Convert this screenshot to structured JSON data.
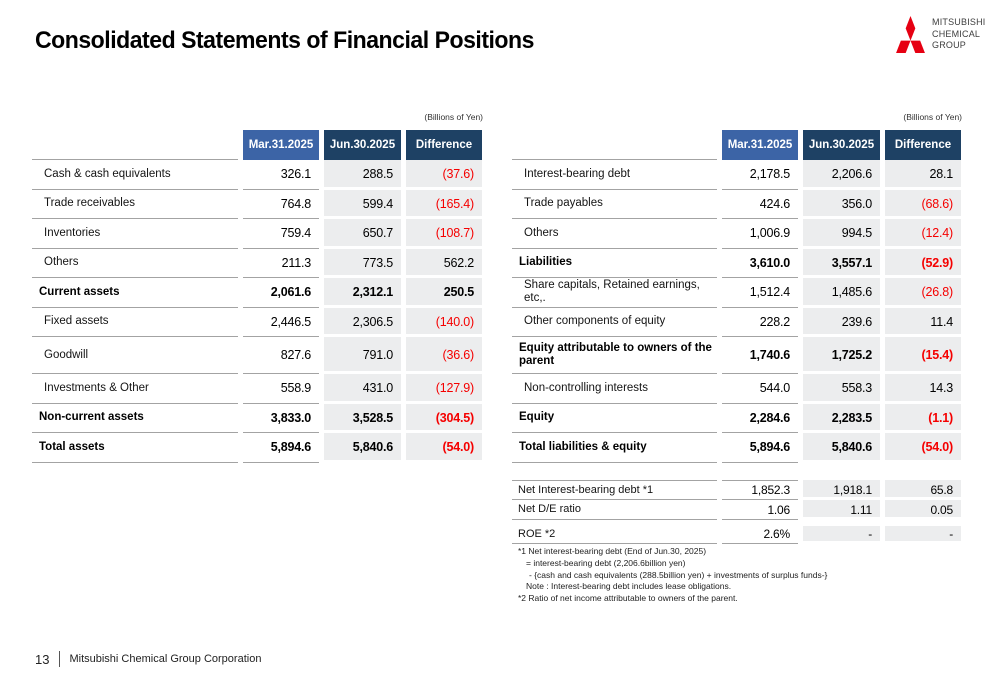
{
  "page": {
    "title": "Consolidated Statements of Financial Positions",
    "footer": {
      "page_number": "13",
      "company": "Mitsubishi Chemical Group Corporation"
    }
  },
  "logo": {
    "mark": "mitsubishi-three-diamonds",
    "lines": [
      "MITSUBISHI",
      "CHEMICAL",
      "GROUP"
    ]
  },
  "units_label": "(Billions of Yen)",
  "columns": [
    "Mar.31.2025",
    "Jun.30.2025",
    "Difference"
  ],
  "colors": {
    "header_blue": "#3C64A6",
    "header_navy": "#1E4164",
    "column_gray": "#ECEDEE",
    "rule_gray": "#A3A3A3",
    "negative_red": "#F50000",
    "logo_red": "#E60012"
  },
  "assets_table": {
    "rows": [
      {
        "label": "Cash & cash equivalents",
        "values": [
          "326.1",
          "288.5",
          "(37.6)"
        ],
        "bold": false
      },
      {
        "label": "Trade receivables",
        "values": [
          "764.8",
          "599.4",
          "(165.4)"
        ],
        "bold": false
      },
      {
        "label": "Inventories",
        "values": [
          "759.4",
          "650.7",
          "(108.7)"
        ],
        "bold": false
      },
      {
        "label": "Others",
        "values": [
          "211.3",
          "773.5",
          "562.2"
        ],
        "bold": false
      },
      {
        "label": "Current assets",
        "values": [
          "2,061.6",
          "2,312.1",
          "250.5"
        ],
        "bold": true
      },
      {
        "label": "Fixed assets",
        "values": [
          "2,446.5",
          "2,306.5",
          "(140.0)"
        ],
        "bold": false
      },
      {
        "label": "Goodwill",
        "values": [
          "827.6",
          "791.0",
          "(36.6)"
        ],
        "bold": false,
        "tall": true
      },
      {
        "label": "Investments & Other",
        "values": [
          "558.9",
          "431.0",
          "(127.9)"
        ],
        "bold": false
      },
      {
        "label": "Non-current assets",
        "values": [
          "3,833.0",
          "3,528.5",
          "(304.5)"
        ],
        "bold": true
      },
      {
        "label": "Total assets",
        "values": [
          "5,894.6",
          "5,840.6",
          "(54.0)"
        ],
        "bold": true
      }
    ]
  },
  "liabilities_table": {
    "rows": [
      {
        "label": "Interest-bearing debt",
        "values": [
          "2,178.5",
          "2,206.6",
          "28.1"
        ],
        "bold": false
      },
      {
        "label": "Trade payables",
        "values": [
          "424.6",
          "356.0",
          "(68.6)"
        ],
        "bold": false
      },
      {
        "label": "Others",
        "values": [
          "1,006.9",
          "994.5",
          "(12.4)"
        ],
        "bold": false
      },
      {
        "label": "Liabilities",
        "values": [
          "3,610.0",
          "3,557.1",
          "(52.9)"
        ],
        "bold": true
      },
      {
        "label": "Share capitals, Retained earnings, etc,.",
        "values": [
          "1,512.4",
          "1,485.6",
          "(26.8)"
        ],
        "bold": false
      },
      {
        "label": "Other components of equity",
        "values": [
          "228.2",
          "239.6",
          "11.4"
        ],
        "bold": false
      },
      {
        "label": "Equity attributable to owners of the parent",
        "values": [
          "1,740.6",
          "1,725.2",
          "(15.4)"
        ],
        "bold": true,
        "tall": true
      },
      {
        "label": "Non-controlling interests",
        "values": [
          "544.0",
          "558.3",
          "14.3"
        ],
        "bold": false
      },
      {
        "label": "Equity",
        "values": [
          "2,284.6",
          "2,283.5",
          "(1.1)"
        ],
        "bold": true
      },
      {
        "label": "Total liabilities & equity",
        "values": [
          "5,894.6",
          "5,840.6",
          "(54.0)"
        ],
        "bold": true
      }
    ]
  },
  "ratios_table": {
    "rows": [
      {
        "label": "Net Interest-bearing debt *1",
        "values": [
          "1,852.3",
          "1,918.1",
          "65.8"
        ],
        "bold": false,
        "topline": true
      },
      {
        "label": "Net D/E ratio",
        "values": [
          "1.06",
          "1.11",
          "0.05"
        ],
        "bold": false
      },
      {
        "spacer": true
      },
      {
        "label": "ROE *2",
        "values": [
          "2.6%",
          "-",
          "-"
        ],
        "bold": false,
        "short": true
      }
    ]
  },
  "footnotes": [
    {
      "text": "*1 Net interest-bearing debt (End of Jun.30, 2025)",
      "indent": 0
    },
    {
      "text": "= interest-bearing debt (2,206.6billion yen)",
      "indent": 1
    },
    {
      "text": "- {cash and cash equivalents (288.5billion yen) + investments of surplus funds-}",
      "indent": 2
    },
    {
      "text": "Note :  Interest-bearing debt includes lease obligations.",
      "indent": 1
    },
    {
      "text": "*2 Ratio of net income attributable to owners of the parent.",
      "indent": 0
    }
  ]
}
